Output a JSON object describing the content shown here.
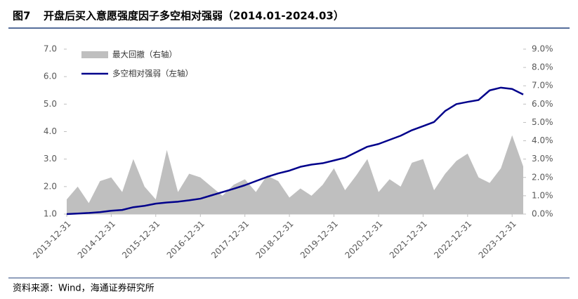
{
  "figure_label": "图7",
  "source": "资料来源：Wind，海通证券研究所",
  "chart_data": {
    "type": "line-area",
    "title": "开盘后买入意愿强度因子多空相对强弱（2014.01-2024.03）",
    "x": [
      "2013-12-31",
      "2014-03-31",
      "2014-06-30",
      "2014-09-30",
      "2014-12-31",
      "2015-03-31",
      "2015-06-30",
      "2015-09-30",
      "2015-12-31",
      "2016-03-31",
      "2016-06-30",
      "2016-09-30",
      "2016-12-31",
      "2017-03-31",
      "2017-06-30",
      "2017-09-30",
      "2017-12-31",
      "2018-03-31",
      "2018-06-30",
      "2018-09-30",
      "2018-12-31",
      "2019-03-31",
      "2019-06-30",
      "2019-09-30",
      "2019-12-31",
      "2020-03-31",
      "2020-06-30",
      "2020-09-30",
      "2020-12-31",
      "2021-03-31",
      "2021-06-30",
      "2021-09-30",
      "2021-12-31",
      "2022-03-31",
      "2022-06-30",
      "2022-09-30",
      "2022-12-31",
      "2023-03-31",
      "2023-06-30",
      "2023-09-30",
      "2023-12-31",
      "2024-03-31"
    ],
    "series": [
      {
        "name": "最大回撤（右轴）",
        "kind": "area",
        "axis": "y2",
        "color": "#bfbfbf",
        "values": [
          0.8,
          1.5,
          0.6,
          1.8,
          2.0,
          1.2,
          3.0,
          1.5,
          0.8,
          3.5,
          1.2,
          2.2,
          2.0,
          1.5,
          1.0,
          1.6,
          1.9,
          1.2,
          2.1,
          1.8,
          0.9,
          1.4,
          1.0,
          1.6,
          2.5,
          1.3,
          2.1,
          3.0,
          1.2,
          1.9,
          1.5,
          2.8,
          3.0,
          1.3,
          2.2,
          2.9,
          3.3,
          2.0,
          1.7,
          2.5,
          4.3,
          2.6
        ]
      },
      {
        "name": "多空相对强弱（左轴）",
        "kind": "line",
        "color": "#00008b",
        "values": [
          1.0,
          1.02,
          1.04,
          1.07,
          1.12,
          1.15,
          1.25,
          1.3,
          1.38,
          1.42,
          1.45,
          1.5,
          1.56,
          1.68,
          1.8,
          1.92,
          2.05,
          2.2,
          2.35,
          2.48,
          2.58,
          2.72,
          2.8,
          2.85,
          2.95,
          3.05,
          3.25,
          3.45,
          3.55,
          3.7,
          3.85,
          4.05,
          4.2,
          4.35,
          4.75,
          5.0,
          5.08,
          5.15,
          5.5,
          5.6,
          5.55,
          5.35
        ]
      }
    ],
    "xlim": [
      "2013-12-31",
      "2024-03-31"
    ],
    "xticks": [
      "2013-12-31",
      "2014-12-31",
      "2015-12-31",
      "2016-12-31",
      "2017-12-31",
      "2018-12-31",
      "2019-12-31",
      "2020-12-31",
      "2021-12-31",
      "2022-12-31",
      "2023-12-31"
    ],
    "ylim": [
      1,
      7
    ],
    "yticks": [
      {
        "value": 1,
        "label": "1.0"
      },
      {
        "value": 2,
        "label": "2.0"
      },
      {
        "value": 3,
        "label": "3.0"
      },
      {
        "value": 4,
        "label": "4.0"
      },
      {
        "value": 5,
        "label": "5.0"
      },
      {
        "value": 6,
        "label": "6.0"
      },
      {
        "value": 7,
        "label": "7.0"
      }
    ],
    "y2lim": [
      0,
      9
    ],
    "y2ticks": [
      {
        "value": 0,
        "label": "0.0%"
      },
      {
        "value": 1,
        "label": "1.0%"
      },
      {
        "value": 2,
        "label": "2.0%"
      },
      {
        "value": 3,
        "label": "3.0%"
      },
      {
        "value": 4,
        "label": "4.0%"
      },
      {
        "value": 5,
        "label": "5.0%"
      },
      {
        "value": 6,
        "label": "6.0%"
      },
      {
        "value": 7,
        "label": "7.0%"
      },
      {
        "value": 8,
        "label": "8.0%"
      },
      {
        "value": 9,
        "label": "9.0%"
      }
    ],
    "legend": "upper left",
    "grid": false
  }
}
